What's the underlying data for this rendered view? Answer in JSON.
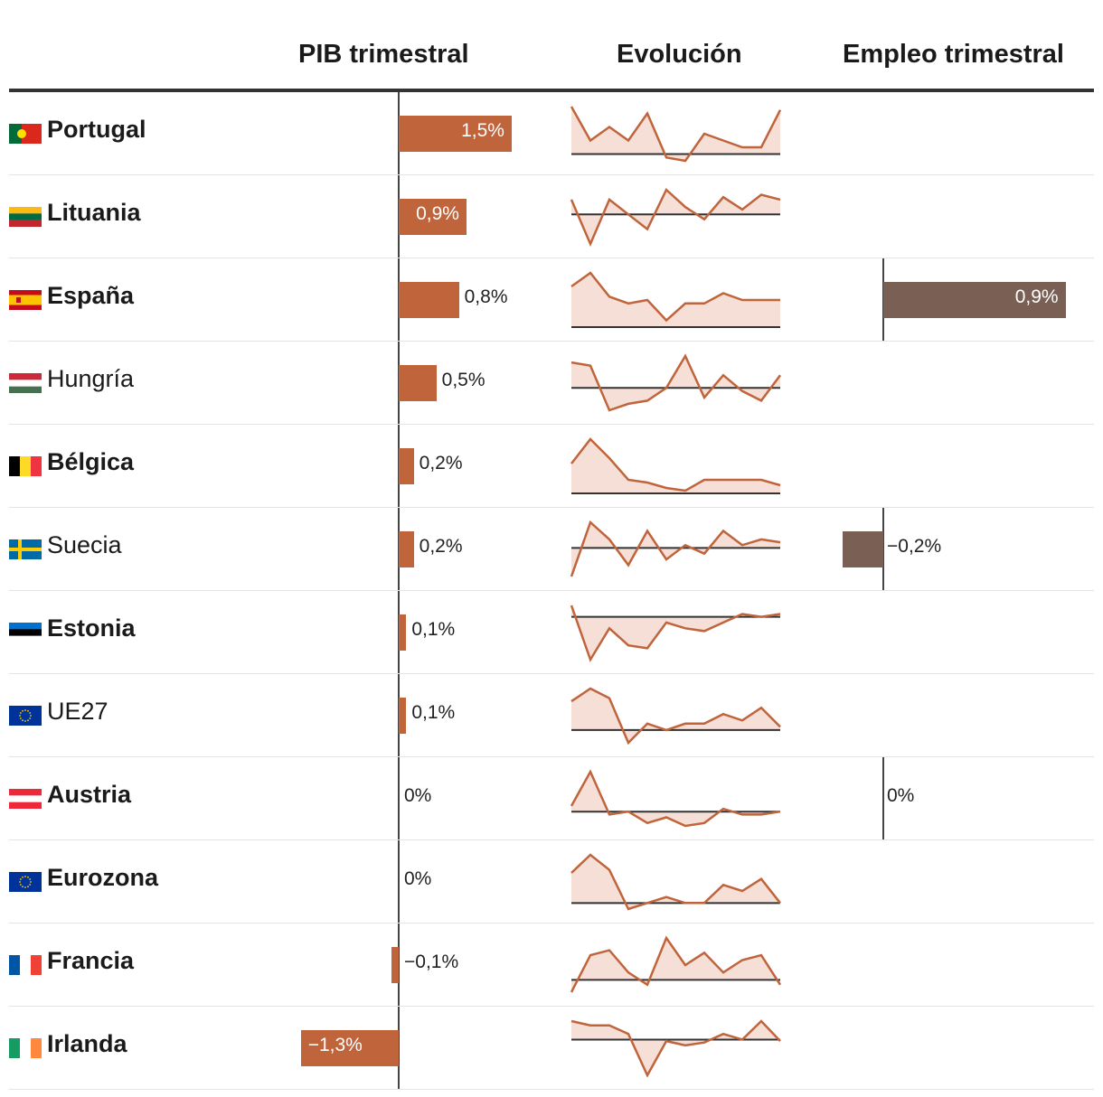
{
  "chart_data": {
    "type": "bar",
    "title": "",
    "columns": {
      "pib": "PIB trimestral",
      "evolucion": "Evolución",
      "empleo": "Empleo trimestral"
    },
    "pib_range": [
      -1.5,
      1.5
    ],
    "empleo_range": [
      -0.4,
      0.9
    ],
    "colors": {
      "pib": "#c0643c",
      "empleo": "#7a5f54",
      "spark_line": "#c0643c",
      "spark_fill": "#f5dfd6",
      "axis": "#333333"
    },
    "rows": [
      {
        "country": "Portugal",
        "bold": true,
        "flag": "portugal-flag-icon",
        "pib": 1.5,
        "pib_label": "1,5%",
        "empleo": null,
        "empleo_label": "",
        "spark": [
          1.4,
          0.4,
          0.8,
          0.4,
          1.2,
          -0.1,
          -0.2,
          0.6,
          0.4,
          0.2,
          0.2,
          1.3
        ]
      },
      {
        "country": "Lituania",
        "bold": true,
        "flag": "lithuania-flag-icon",
        "pib": 0.9,
        "pib_label": "0,9%",
        "empleo": null,
        "empleo_label": "",
        "spark": [
          0.6,
          -1.2,
          0.6,
          0.0,
          -0.6,
          1.0,
          0.3,
          -0.2,
          0.7,
          0.2,
          0.8,
          0.6
        ]
      },
      {
        "country": "España",
        "bold": true,
        "flag": "spain-flag-icon",
        "pib": 0.8,
        "pib_label": "0,8%",
        "empleo": 0.9,
        "empleo_label": "0,9%",
        "spark": [
          1.2,
          1.6,
          0.9,
          0.7,
          0.8,
          0.2,
          0.7,
          0.7,
          1.0,
          0.8,
          0.8,
          0.8
        ]
      },
      {
        "country": "Hungría",
        "bold": false,
        "flag": "hungary-flag-icon",
        "pib": 0.5,
        "pib_label": "0,5%",
        "empleo": null,
        "empleo_label": "",
        "spark": [
          0.8,
          0.7,
          -0.7,
          -0.5,
          -0.4,
          0.0,
          1.0,
          -0.3,
          0.4,
          -0.1,
          -0.4,
          0.4
        ]
      },
      {
        "country": "Bélgica",
        "bold": true,
        "flag": "belgium-flag-icon",
        "pib": 0.2,
        "pib_label": "0,2%",
        "empleo": null,
        "empleo_label": "",
        "spark": [
          1.1,
          2.0,
          1.3,
          0.5,
          0.4,
          0.2,
          0.1,
          0.5,
          0.5,
          0.5,
          0.5,
          0.3
        ]
      },
      {
        "country": "Suecia",
        "bold": false,
        "flag": "sweden-flag-icon",
        "pib": 0.2,
        "pib_label": "0,2%",
        "empleo": -0.2,
        "empleo_label": "−0,2%",
        "spark": [
          -1.0,
          0.9,
          0.3,
          -0.6,
          0.6,
          -0.4,
          0.1,
          -0.2,
          0.6,
          0.1,
          0.3,
          0.2
        ]
      },
      {
        "country": "Estonia",
        "bold": true,
        "flag": "estonia-flag-icon",
        "pib": 0.1,
        "pib_label": "0,1%",
        "empleo": null,
        "empleo_label": "",
        "spark": [
          0.4,
          -1.5,
          -0.4,
          -1.0,
          -1.1,
          -0.2,
          -0.4,
          -0.5,
          -0.2,
          0.1,
          0.0,
          0.1
        ]
      },
      {
        "country": "UE27",
        "bold": false,
        "flag": "eu-flag-icon",
        "pib": 0.1,
        "pib_label": "0,1%",
        "empleo": null,
        "empleo_label": "",
        "spark": [
          0.9,
          1.3,
          1.0,
          -0.4,
          0.2,
          0.0,
          0.2,
          0.2,
          0.5,
          0.3,
          0.7,
          0.1
        ]
      },
      {
        "country": "Austria",
        "bold": true,
        "flag": "austria-flag-icon",
        "pib": 0.0,
        "pib_label": "0%",
        "empleo": 0.0,
        "empleo_label": "0%",
        "spark": [
          0.2,
          1.4,
          -0.1,
          0.0,
          -0.4,
          -0.2,
          -0.5,
          -0.4,
          0.1,
          -0.1,
          -0.1,
          0.0
        ]
      },
      {
        "country": "Eurozona",
        "bold": true,
        "flag": "eurozone-flag-icon",
        "pib": 0.0,
        "pib_label": "0%",
        "empleo": null,
        "empleo_label": "",
        "spark": [
          1.0,
          1.6,
          1.1,
          -0.2,
          0.0,
          0.2,
          0.0,
          0.0,
          0.6,
          0.4,
          0.8,
          0.0
        ]
      },
      {
        "country": "Francia",
        "bold": true,
        "flag": "france-flag-icon",
        "pib": -0.1,
        "pib_label": "−0,1%",
        "empleo": null,
        "empleo_label": "",
        "spark": [
          -0.5,
          1.0,
          1.2,
          0.3,
          -0.2,
          1.7,
          0.6,
          1.1,
          0.3,
          0.8,
          1.0,
          -0.2
        ]
      },
      {
        "country": "Irlanda",
        "bold": true,
        "flag": "ireland-flag-icon",
        "pib": -1.3,
        "pib_label": "−1,3%",
        "empleo": null,
        "empleo_label": "",
        "spark": [
          1.3,
          1.0,
          1.0,
          0.4,
          -2.5,
          -0.1,
          -0.4,
          -0.2,
          0.4,
          0.0,
          1.3,
          -0.1
        ]
      }
    ]
  }
}
